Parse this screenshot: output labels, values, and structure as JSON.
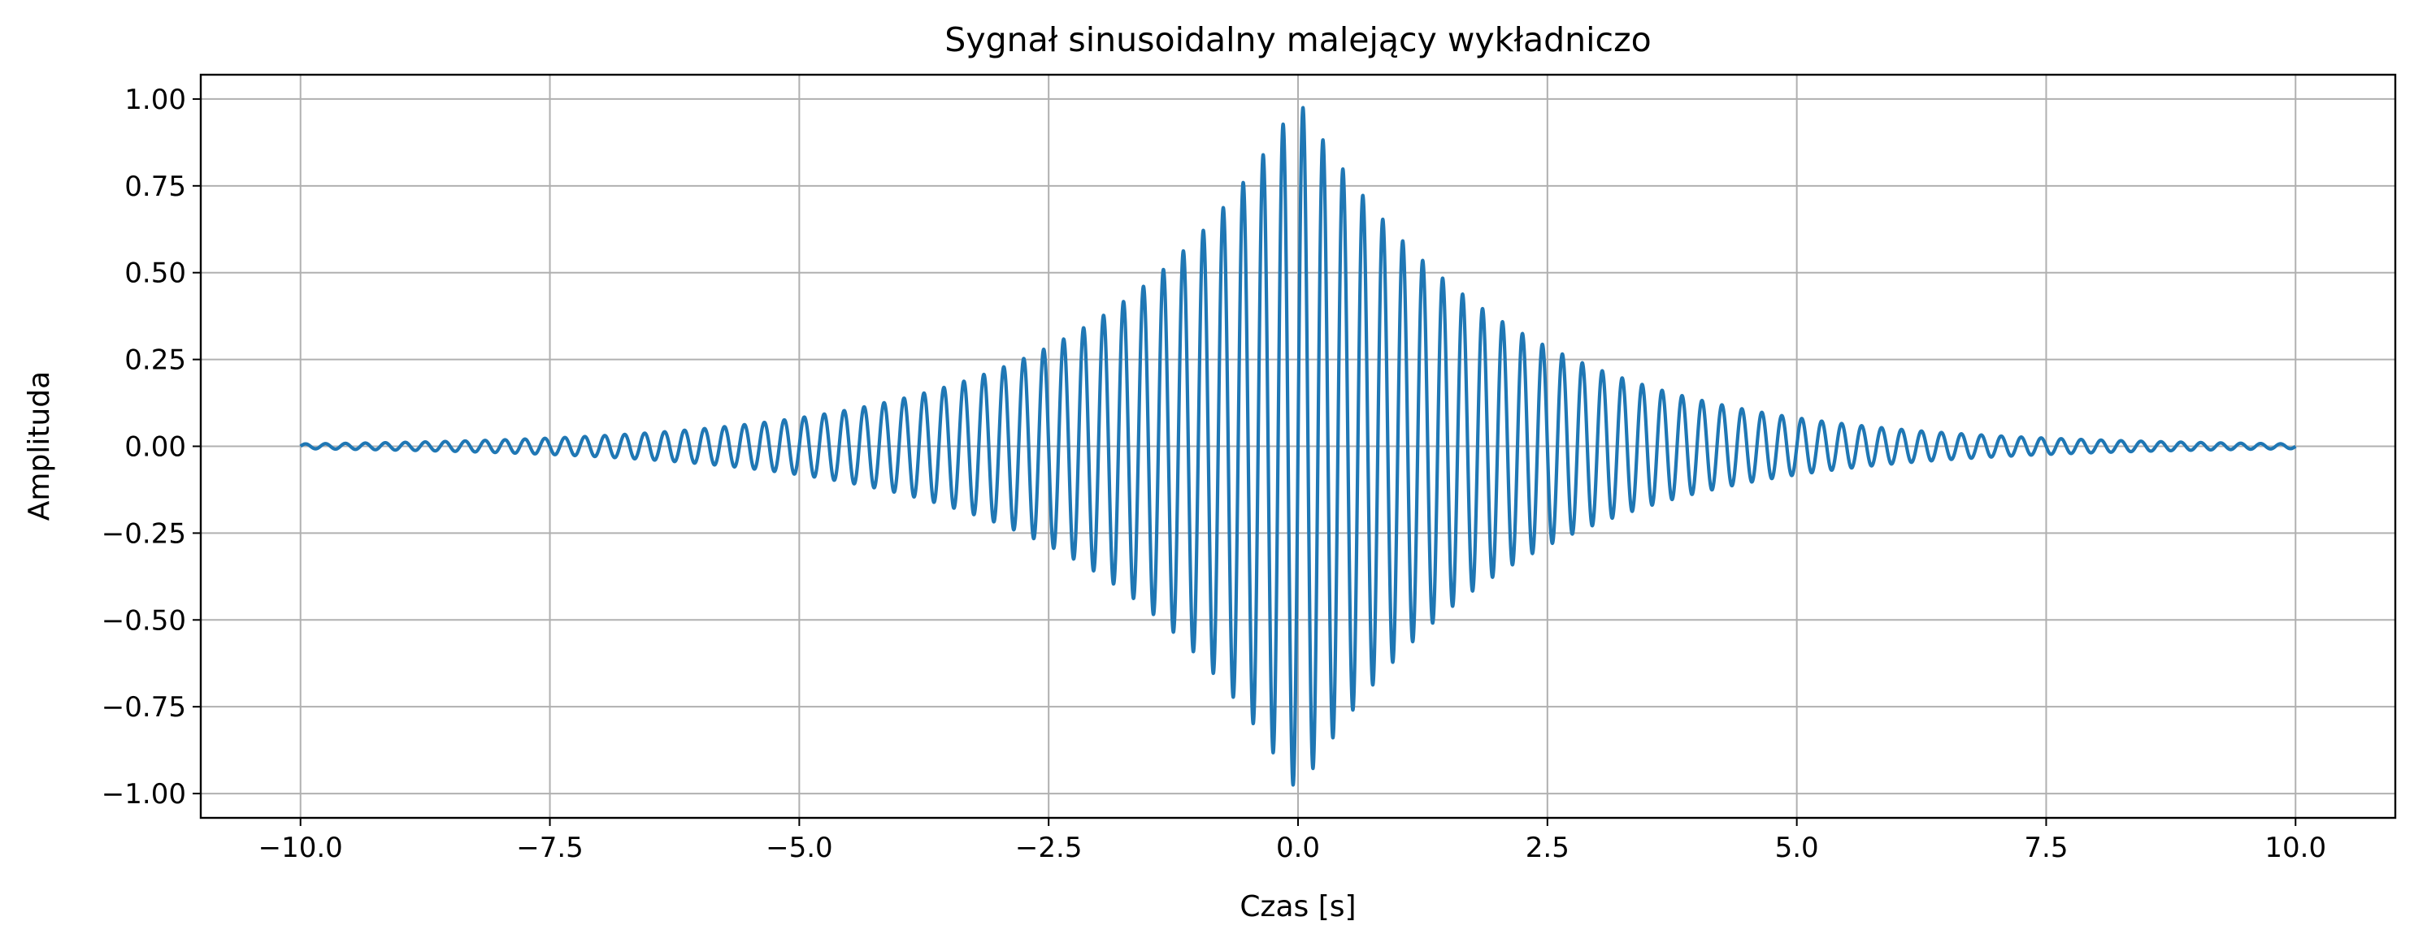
{
  "chart_data": {
    "type": "line",
    "title": "Sygnał sinusoidalny malejący wykładniczo",
    "xlabel": "Czas [s]",
    "ylabel": "Amplituda",
    "xlim": [
      -11.0,
      11.0
    ],
    "ylim": [
      -1.07,
      1.07
    ],
    "xticks": [
      -10.0,
      -7.5,
      -5.0,
      -2.5,
      0.0,
      2.5,
      5.0,
      7.5,
      10.0
    ],
    "xtick_labels": [
      "−10.0",
      "−7.5",
      "−5.0",
      "−2.5",
      "0.0",
      "2.5",
      "5.0",
      "7.5",
      "10.0"
    ],
    "yticks": [
      -1.0,
      -0.75,
      -0.5,
      -0.25,
      0.0,
      0.25,
      0.5,
      0.75,
      1.0
    ],
    "ytick_labels": [
      "−1.00",
      "−0.75",
      "−0.50",
      "−0.25",
      "0.00",
      "0.25",
      "0.50",
      "0.75",
      "1.00"
    ],
    "grid": true,
    "line_color": "#1f77b4",
    "series": [
      {
        "function": "exp(-0.5*|t|) * sin(2*pi*5*t)",
        "x_range": [
          -10.0,
          10.0
        ],
        "x_step": 0.002,
        "samples": [
          {
            "x": -10.0,
            "y": 0.0
          },
          {
            "x": -7.5,
            "y": 0.0
          },
          {
            "x": -5.0,
            "y": 0.0
          },
          {
            "x": -2.5,
            "y": 0.0
          },
          {
            "x": -0.55,
            "y": 0.76
          },
          {
            "x": -0.05,
            "y": -0.98
          },
          {
            "x": 0.05,
            "y": 0.98
          },
          {
            "x": 0.55,
            "y": -0.76
          },
          {
            "x": 2.5,
            "y": 0.0
          },
          {
            "x": 5.0,
            "y": 0.0
          },
          {
            "x": 7.5,
            "y": 0.0
          },
          {
            "x": 10.0,
            "y": 0.0
          }
        ]
      }
    ]
  }
}
